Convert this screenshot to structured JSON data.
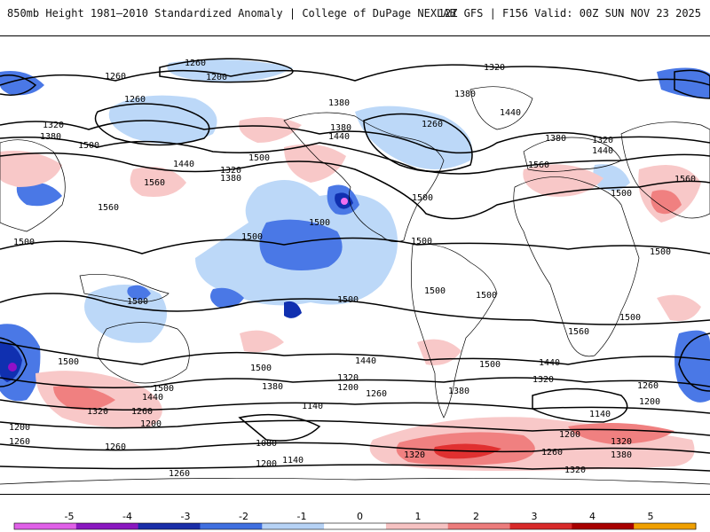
{
  "header": {
    "title_left": "850mb Height 1981–2010 Standardized Anomaly | College of DuPage NEXLAB",
    "title_right": "12Z GFS | F156 Valid: 00Z SUN NOV 23 2025"
  },
  "map": {
    "contour_labels": [
      "1260",
      "1200",
      "1320",
      "1380",
      "1440",
      "1500",
      "1560",
      "1140",
      "1080"
    ],
    "anomaly_colors": {
      "neg5": "#f070f0",
      "neg4": "#9010c8",
      "neg3": "#1030b0",
      "neg2": "#4a78e6",
      "neg1": "#bcd8f8",
      "zero": "#ffffff",
      "pos1": "#f8c8c8",
      "pos2": "#f08080",
      "pos3": "#e03030",
      "pos4": "#b00000",
      "pos5": "#f0a000"
    }
  },
  "legend": {
    "ticks": [
      "-5",
      "-4",
      "-3",
      "-2",
      "-1",
      "0",
      "1",
      "2",
      "3",
      "4",
      "5"
    ],
    "colors": [
      "#e060e8",
      "#8a18c0",
      "#1a2ea8",
      "#3f6fe0",
      "#b6d2f5",
      "#ffffff",
      "#f6c2c2",
      "#ec7c7c",
      "#d82a2a",
      "#a80000",
      "#f0a000"
    ]
  }
}
